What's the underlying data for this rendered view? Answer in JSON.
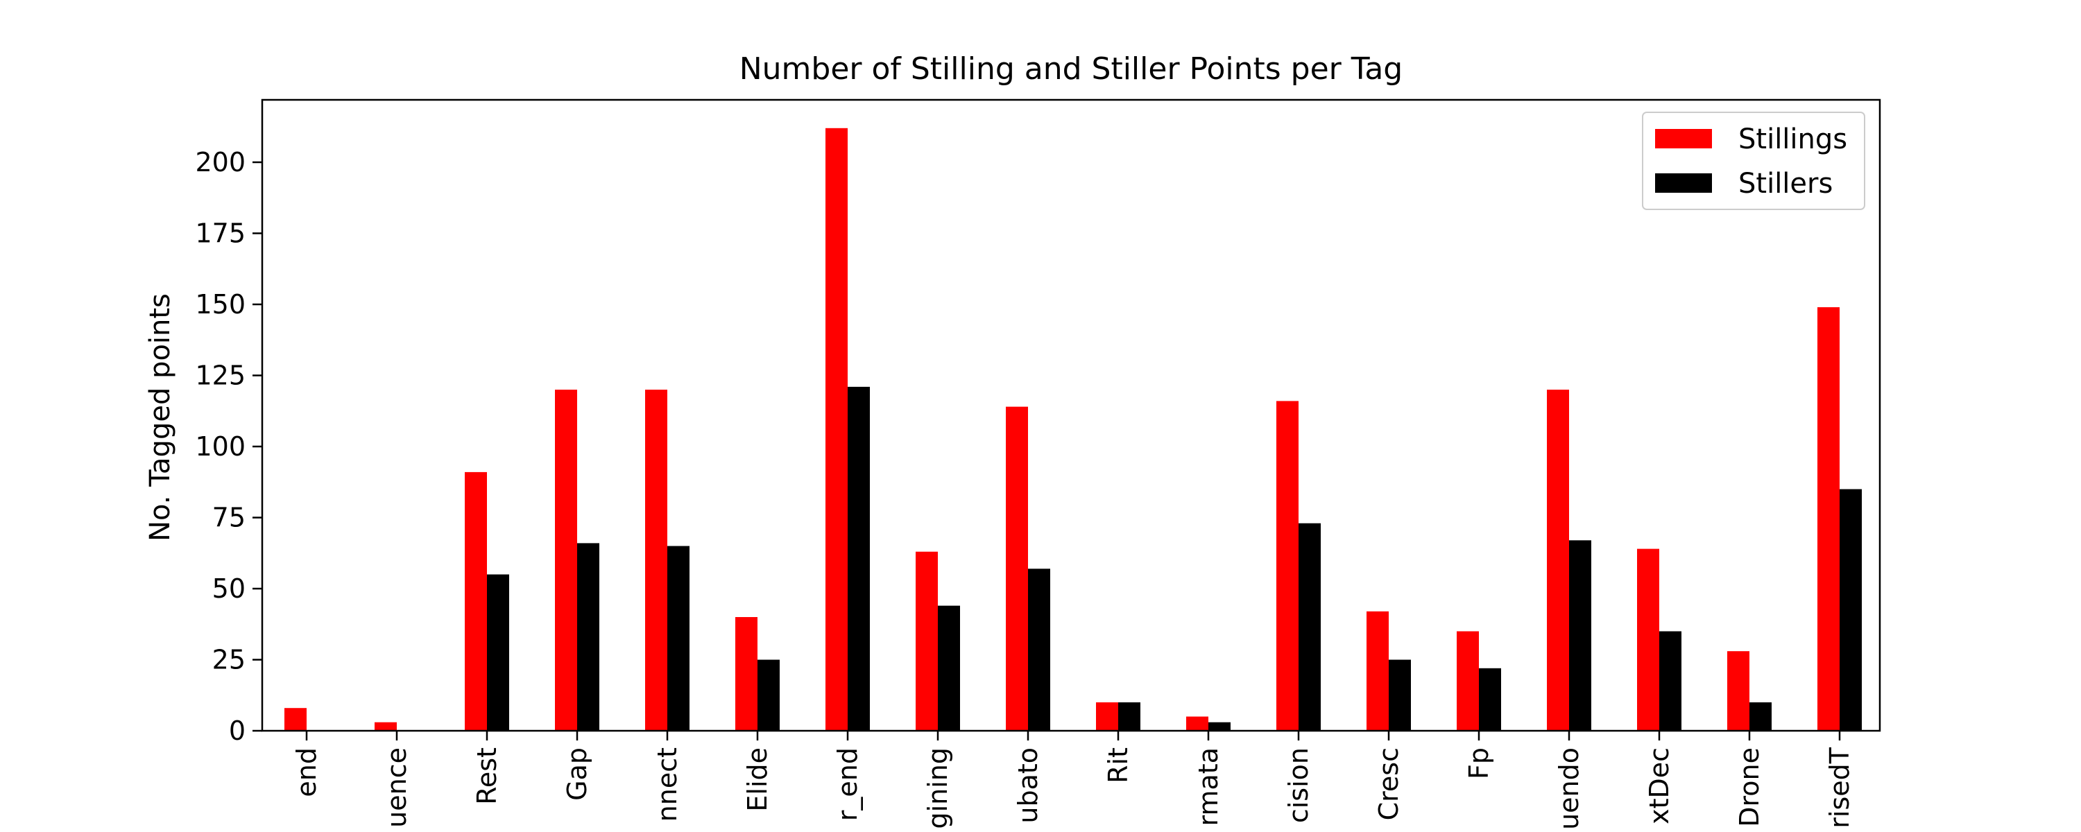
{
  "chart_data": {
    "type": "bar",
    "title": "Number of Stilling and Stiller Points per Tag",
    "xlabel": "",
    "ylabel": "No. Tagged points",
    "ylim": [
      0,
      222
    ],
    "yticks": [
      0,
      25,
      50,
      75,
      100,
      125,
      150,
      175,
      200
    ],
    "grid": false,
    "legend_position": "top-right",
    "categories": [
      "end",
      "uence",
      "Rest",
      "Gap",
      "nnect",
      "Elide",
      "r_end",
      "gining",
      "ubato",
      "Rit",
      "rmata",
      "cision",
      "Cresc",
      "Fp",
      "uendo",
      "xtDec",
      "Drone",
      "risedT"
    ],
    "series": [
      {
        "name": "Stillings",
        "color": "#ff0000",
        "values": [
          8,
          3,
          91,
          120,
          120,
          40,
          212,
          63,
          114,
          10,
          5,
          116,
          42,
          35,
          120,
          64,
          28,
          149
        ]
      },
      {
        "name": "Stillers",
        "color": "#000000",
        "values": [
          0,
          0,
          55,
          66,
          65,
          25,
          121,
          44,
          57,
          10,
          3,
          73,
          25,
          22,
          67,
          35,
          10,
          85
        ]
      }
    ]
  }
}
